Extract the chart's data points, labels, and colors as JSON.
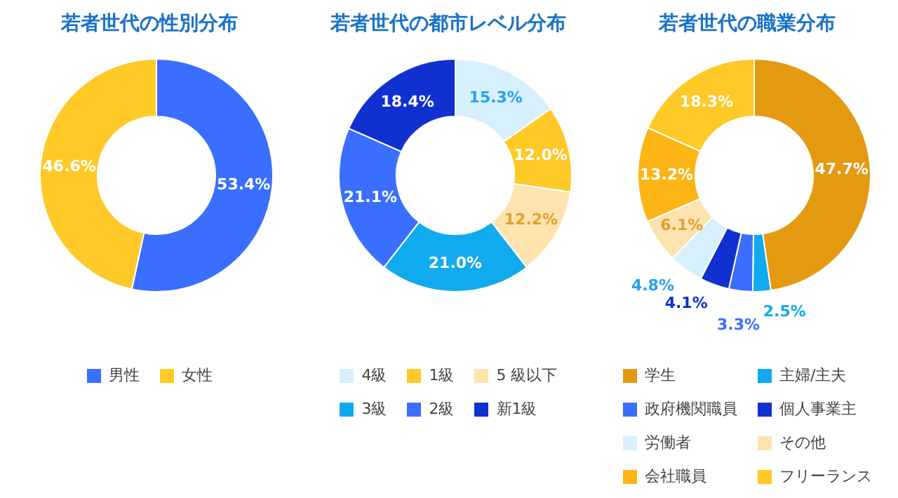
{
  "chart_data": [
    {
      "type": "donut",
      "title": "若者世代の性別分布",
      "categories": [
        "男性",
        "女性"
      ],
      "values": [
        53.4,
        46.6
      ],
      "colors": [
        "#3a6eff",
        "#ffc928"
      ],
      "value_labels": [
        "53.4%",
        "46.6%"
      ],
      "legend": "bottom"
    },
    {
      "type": "donut",
      "title": "若者世代の都市レベル分布",
      "categories": [
        "4級",
        "1級",
        "5 級以下",
        "3級",
        "2級",
        "新1級"
      ],
      "values": [
        15.3,
        12.0,
        12.2,
        21.0,
        21.1,
        18.4
      ],
      "colors": [
        "#d6f0fd",
        "#ffc928",
        "#ffe3ae",
        "#10aaee",
        "#3a6eff",
        "#1030d0"
      ],
      "value_labels": [
        "15.3%",
        "12.0%",
        "12.2%",
        "21.0%",
        "21.1%",
        "18.4%"
      ],
      "legend": "bottom"
    },
    {
      "type": "donut",
      "title": "若者世代の職業分布",
      "categories": [
        "学生",
        "主婦/主夫",
        "政府機関職員",
        "個人事業主",
        "労働者",
        "その他",
        "会社職員",
        "フリーランス"
      ],
      "values": [
        47.7,
        2.5,
        3.3,
        4.1,
        4.8,
        6.1,
        13.2,
        18.3
      ],
      "colors": [
        "#e39a10",
        "#10aaee",
        "#3a6eff",
        "#1030d0",
        "#d6f0fd",
        "#ffe3ae",
        "#fdb515",
        "#ffc928"
      ],
      "value_labels": [
        "47.7%",
        "2.5%",
        "3.3%",
        "4.1%",
        "4.8%",
        "6.1%",
        "13.2%",
        "18.3%"
      ],
      "legend": "bottom"
    }
  ]
}
